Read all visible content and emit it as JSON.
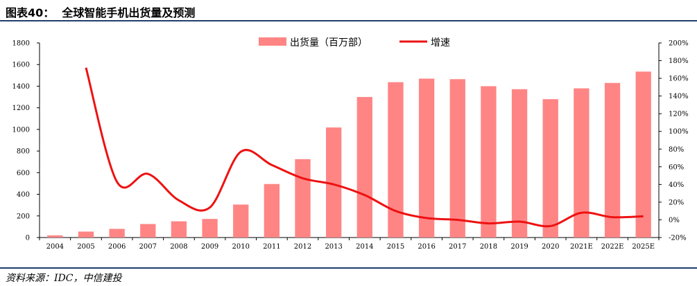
{
  "header": {
    "title": "图表40：  全球智能手机出货量及预测"
  },
  "footer": {
    "source": "资料来源：IDC，中信建投"
  },
  "colors": {
    "bar": "#ff8585",
    "line": "#ee1111",
    "rule": "#1f3d6b"
  },
  "chart_data": {
    "type": "bar",
    "title": "",
    "categories": [
      "2004",
      "2005",
      "2006",
      "2007",
      "2008",
      "2009",
      "2010",
      "2011",
      "2012",
      "2013",
      "2014",
      "2015",
      "2016",
      "2017",
      "2018",
      "2019",
      "2020",
      "2021E",
      "2022E",
      "2025E"
    ],
    "series": [
      {
        "name": "出货量（百万部）",
        "type": "bar",
        "axis": "left",
        "values": [
          20,
          55,
          80,
          125,
          150,
          172,
          305,
          495,
          725,
          1018,
          1300,
          1437,
          1470,
          1465,
          1400,
          1372,
          1280,
          1380,
          1430,
          1535
        ]
      },
      {
        "name": "增速",
        "type": "line",
        "axis": "right",
        "values": [
          null,
          172,
          43,
          52,
          22,
          14,
          77,
          62,
          47,
          40,
          28,
          10,
          2,
          0,
          -4,
          -2,
          -7,
          8,
          3,
          4
        ]
      }
    ],
    "y_left": {
      "min": 0,
      "max": 1800,
      "ticks": [
        "0",
        "200",
        "400",
        "600",
        "800",
        "1000",
        "1200",
        "1400",
        "1600",
        "1800"
      ]
    },
    "y_right": {
      "min": -20,
      "max": 200,
      "ticks": [
        "-20%",
        "0%",
        "20%",
        "40%",
        "60%",
        "80%",
        "100%",
        "120%",
        "140%",
        "160%",
        "180%",
        "200%"
      ]
    },
    "legend": {
      "placement": "top-center"
    },
    "grid": false
  }
}
